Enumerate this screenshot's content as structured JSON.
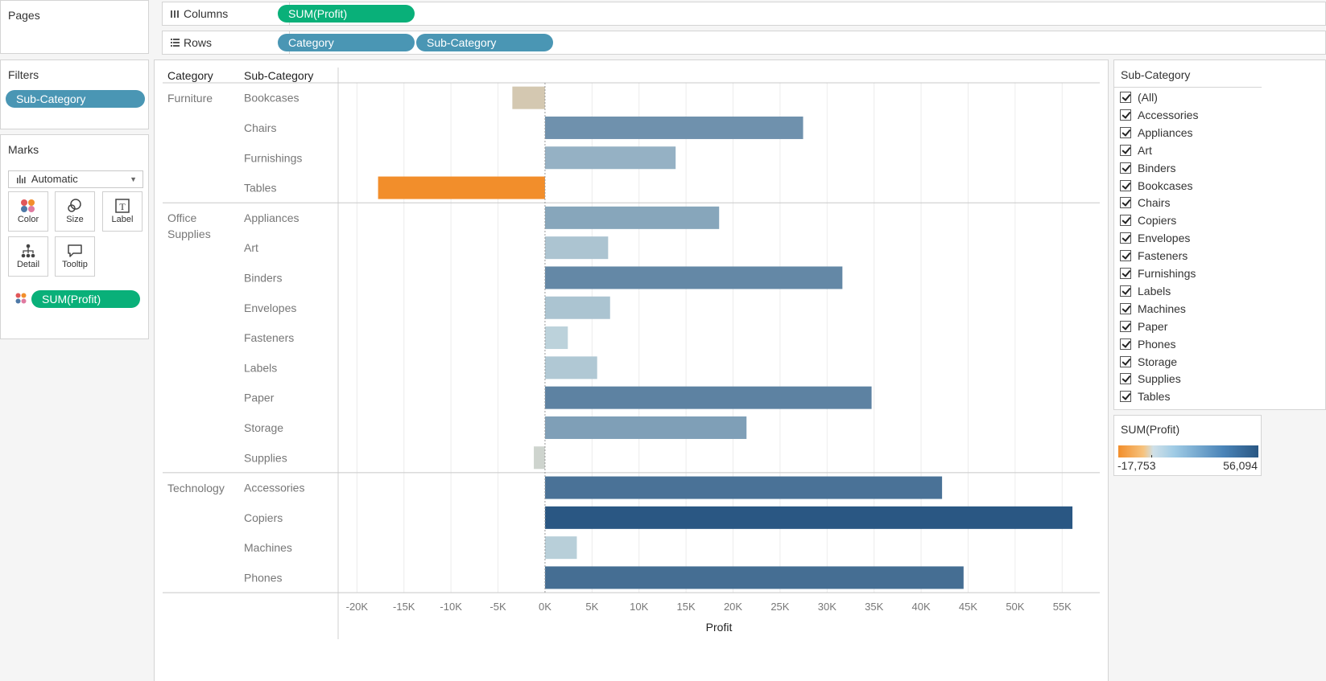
{
  "pages": {
    "title": "Pages"
  },
  "columns_shelf": {
    "label": "Columns",
    "pill": "SUM(Profit)"
  },
  "rows_shelf": {
    "label": "Rows",
    "pills": [
      "Category",
      "Sub-Category"
    ]
  },
  "filters": {
    "title": "Filters",
    "pill": "Sub-Category"
  },
  "marks": {
    "title": "Marks",
    "type": "Automatic",
    "buttons": [
      "Color",
      "Size",
      "Label",
      "Detail",
      "Tooltip"
    ],
    "pill": "SUM(Profit)"
  },
  "sub_category_filter": {
    "title": "Sub-Category",
    "items": [
      "(All)",
      "Accessories",
      "Appliances",
      "Art",
      "Binders",
      "Bookcases",
      "Chairs",
      "Copiers",
      "Envelopes",
      "Fasteners",
      "Furnishings",
      "Labels",
      "Machines",
      "Paper",
      "Phones",
      "Storage",
      "Supplies",
      "Tables"
    ]
  },
  "legend": {
    "title": "SUM(Profit)",
    "min_label": "-17,753",
    "max_label": "56,094",
    "colors": {
      "negative": "#f28e2b",
      "zero": "#c9dde3",
      "positive": "#2a5783"
    }
  },
  "chart_data": {
    "type": "bar",
    "orientation": "horizontal",
    "headers": {
      "category": "Category",
      "sub_category": "Sub-Category"
    },
    "xlabel": "Profit",
    "xlim": [
      -22000,
      59000
    ],
    "ticks": [
      -20000,
      -15000,
      -10000,
      -5000,
      0,
      5000,
      10000,
      15000,
      20000,
      25000,
      30000,
      35000,
      40000,
      45000,
      50000,
      55000
    ],
    "tick_labels": [
      "-20K",
      "-15K",
      "-10K",
      "-5K",
      "0K",
      "5K",
      "10K",
      "15K",
      "20K",
      "25K",
      "30K",
      "35K",
      "40K",
      "45K",
      "50K",
      "55K"
    ],
    "color_range": [
      -17753,
      56094
    ],
    "groups": [
      {
        "category": "Furniture",
        "rows": [
          {
            "sub_category": "Bookcases",
            "value": -3473
          },
          {
            "sub_category": "Chairs",
            "value": 27451
          },
          {
            "sub_category": "Furnishings",
            "value": 13893
          },
          {
            "sub_category": "Tables",
            "value": -17753
          }
        ]
      },
      {
        "category": "Office Supplies",
        "rows": [
          {
            "sub_category": "Appliances",
            "value": 18519
          },
          {
            "sub_category": "Art",
            "value": 6714
          },
          {
            "sub_category": "Binders",
            "value": 31629
          },
          {
            "sub_category": "Envelopes",
            "value": 6922
          },
          {
            "sub_category": "Fasteners",
            "value": 2427
          },
          {
            "sub_category": "Labels",
            "value": 5546
          },
          {
            "sub_category": "Paper",
            "value": 34732
          },
          {
            "sub_category": "Storage",
            "value": 21432
          },
          {
            "sub_category": "Supplies",
            "value": -1189
          }
        ]
      },
      {
        "category": "Technology",
        "rows": [
          {
            "sub_category": "Accessories",
            "value": 42228
          },
          {
            "sub_category": "Copiers",
            "value": 56094
          },
          {
            "sub_category": "Machines",
            "value": 3385
          },
          {
            "sub_category": "Phones",
            "value": 44516
          }
        ]
      }
    ]
  }
}
